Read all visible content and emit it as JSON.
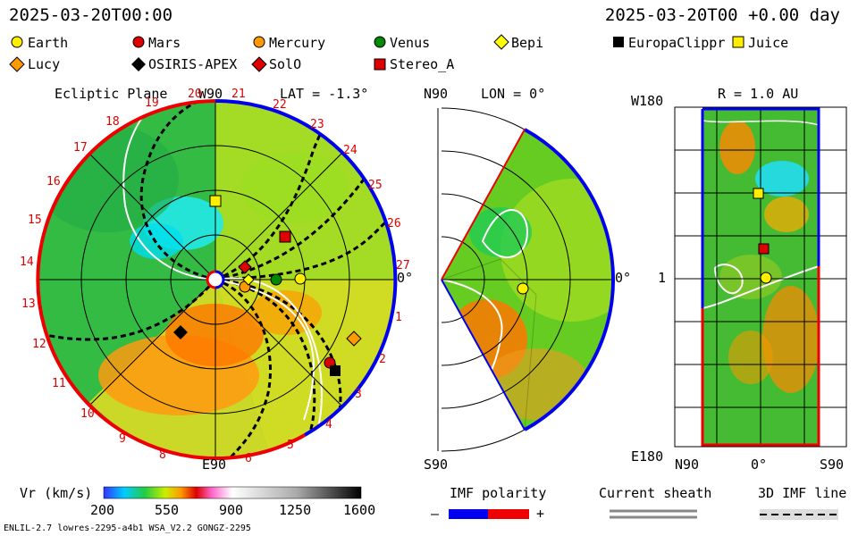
{
  "header": {
    "left_time": "2025-03-20T00:00",
    "right_time": "2025-03-20T00 +0.00 day"
  },
  "legend": [
    {
      "label": "Earth",
      "shape": "circle",
      "color": "#ffee00"
    },
    {
      "label": "Mars",
      "shape": "circle",
      "color": "#dd0000"
    },
    {
      "label": "Mercury",
      "shape": "circle",
      "color": "#ff9900"
    },
    {
      "label": "Venus",
      "shape": "circle",
      "color": "#008800"
    },
    {
      "label": "Bepi",
      "shape": "diamond",
      "color": "#ffff00"
    },
    {
      "label": "EuropaClippr",
      "shape": "square",
      "color": "#000000"
    },
    {
      "label": "Juice",
      "shape": "square",
      "color": "#ffee00"
    },
    {
      "label": "Lucy",
      "shape": "diamond",
      "color": "#ff9900"
    },
    {
      "label": "OSIRIS-APEX",
      "shape": "diamond",
      "color": "#000000"
    },
    {
      "label": "SolO",
      "shape": "diamond",
      "color": "#dd0000"
    },
    {
      "label": "Stereo_A",
      "shape": "square",
      "color": "#dd0000"
    }
  ],
  "panels": {
    "ecliptic": {
      "title": "Ecliptic Plane",
      "lat_label": "LAT = -1.3°",
      "top_label": "W90",
      "bottom_label": "E90",
      "right_label": "0°",
      "carrington_ticks": [
        "20",
        "21",
        "22",
        "23",
        "24",
        "25",
        "26",
        "27",
        "1",
        "2",
        "3",
        "4",
        "5",
        "6",
        "7",
        "8",
        "9",
        "10",
        "11",
        "12",
        "13",
        "14",
        "15",
        "16",
        "17",
        "18",
        "19"
      ]
    },
    "meridional": {
      "lon_label": "LON = 0°",
      "top_label": "N90",
      "bottom_label": "S90",
      "right_label": "0°"
    },
    "radial": {
      "r_label": "R = 1.0 AU",
      "top_label": "W180",
      "mid_label": "1",
      "bottom_label": "E180",
      "x_left": "N90",
      "x_mid": "0°",
      "x_right": "S90"
    }
  },
  "colorbar": {
    "label": "Vr (km/s)",
    "ticks": [
      "200",
      "550",
      "900",
      "1250",
      "1600"
    ]
  },
  "imf": {
    "title": "IMF polarity",
    "minus": "–",
    "plus": "+",
    "colors": {
      "negative": "#0000ee",
      "positive": "#ee0000"
    }
  },
  "current_sheath": {
    "title": "Current sheath"
  },
  "imf_line": {
    "title": "3D IMF line"
  },
  "footer": {
    "model": "ENLIL-2.7 lowres-2295-a4b1 WSA_V2.2 GONGZ-2295"
  },
  "chart_data": {
    "type": "heatmap",
    "variable": "Vr",
    "unit": "km/s",
    "color_range": [
      200,
      1600
    ],
    "bodies_ecliptic": [
      "Earth",
      "Mars",
      "Mercury",
      "Venus",
      "Bepi",
      "EuropaClippr",
      "Juice",
      "Lucy",
      "OSIRIS-APEX",
      "SolO",
      "Stereo_A"
    ]
  }
}
